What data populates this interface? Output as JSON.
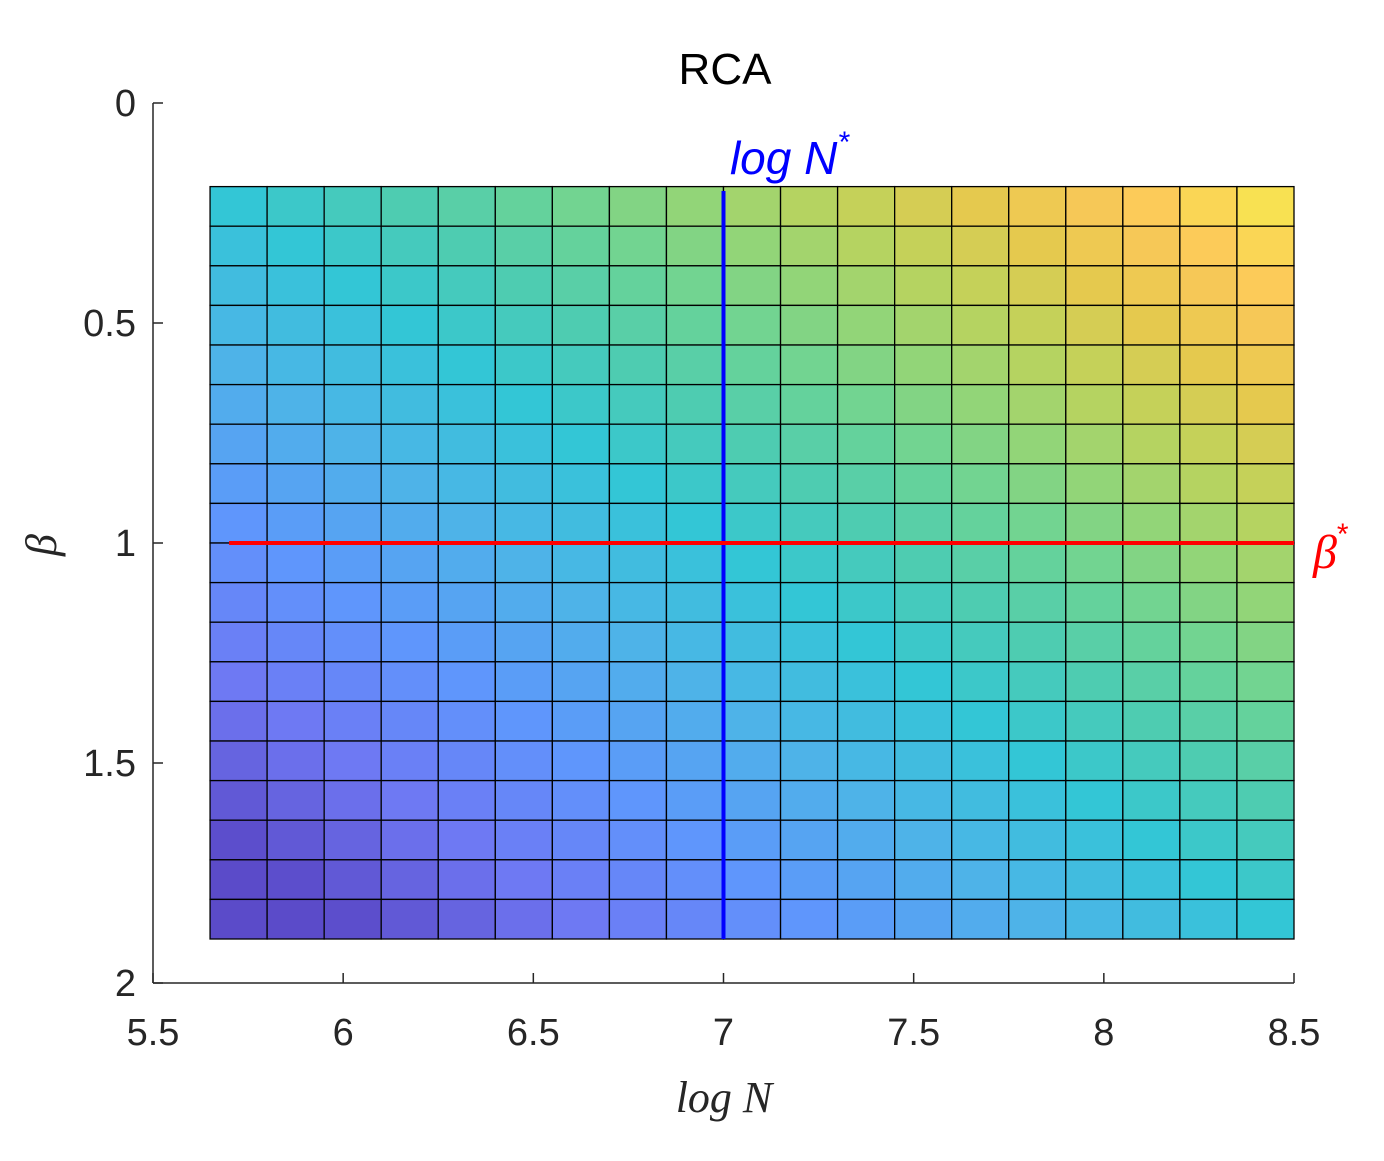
{
  "chart_data": {
    "type": "heatmap",
    "title": "RCA",
    "xlabel": "log N",
    "ylabel": "β",
    "xlim": [
      5.5,
      8.5
    ],
    "ylim": [
      0,
      2
    ],
    "y_reversed": true,
    "x_ticks": [
      5.5,
      6,
      6.5,
      7,
      7.5,
      8,
      8.5
    ],
    "x_tick_labels": [
      "5.5",
      "6",
      "6.5",
      "7",
      "7.5",
      "8",
      "8.5"
    ],
    "y_ticks": [
      0,
      0.5,
      1,
      1.5,
      2
    ],
    "y_tick_labels": [
      "0",
      "0.5",
      "1",
      "1.5",
      "2"
    ],
    "grid_cells": {
      "x_range": [
        5.65,
        8.5
      ],
      "y_range": [
        0.19,
        1.9
      ],
      "columns": 19,
      "rows": 19,
      "value_model": "distance from the optimum (log N* = 7, β* = 1) along the anti-diagonal; low = cyan, high = yellow/purple"
    },
    "colormap": [
      "#5b4bc9",
      "#6f78f3",
      "#5f95fc",
      "#4eb3e8",
      "#33c6d6",
      "#4acbb5",
      "#66d39a",
      "#8fd57a",
      "#bdd35c",
      "#e6c94e",
      "#fcc85a",
      "#f8e451"
    ],
    "optimal_lines": {
      "vertical": {
        "x": 7,
        "y_from": 0.2,
        "y_to": 1.9,
        "label": "log N",
        "label_sup": "*",
        "color": "#0000ff"
      },
      "horizontal": {
        "y": 1,
        "x_from": 5.7,
        "x_to": 8.5,
        "label": "β",
        "label_sup": "*",
        "color": "#ff0000"
      }
    }
  }
}
